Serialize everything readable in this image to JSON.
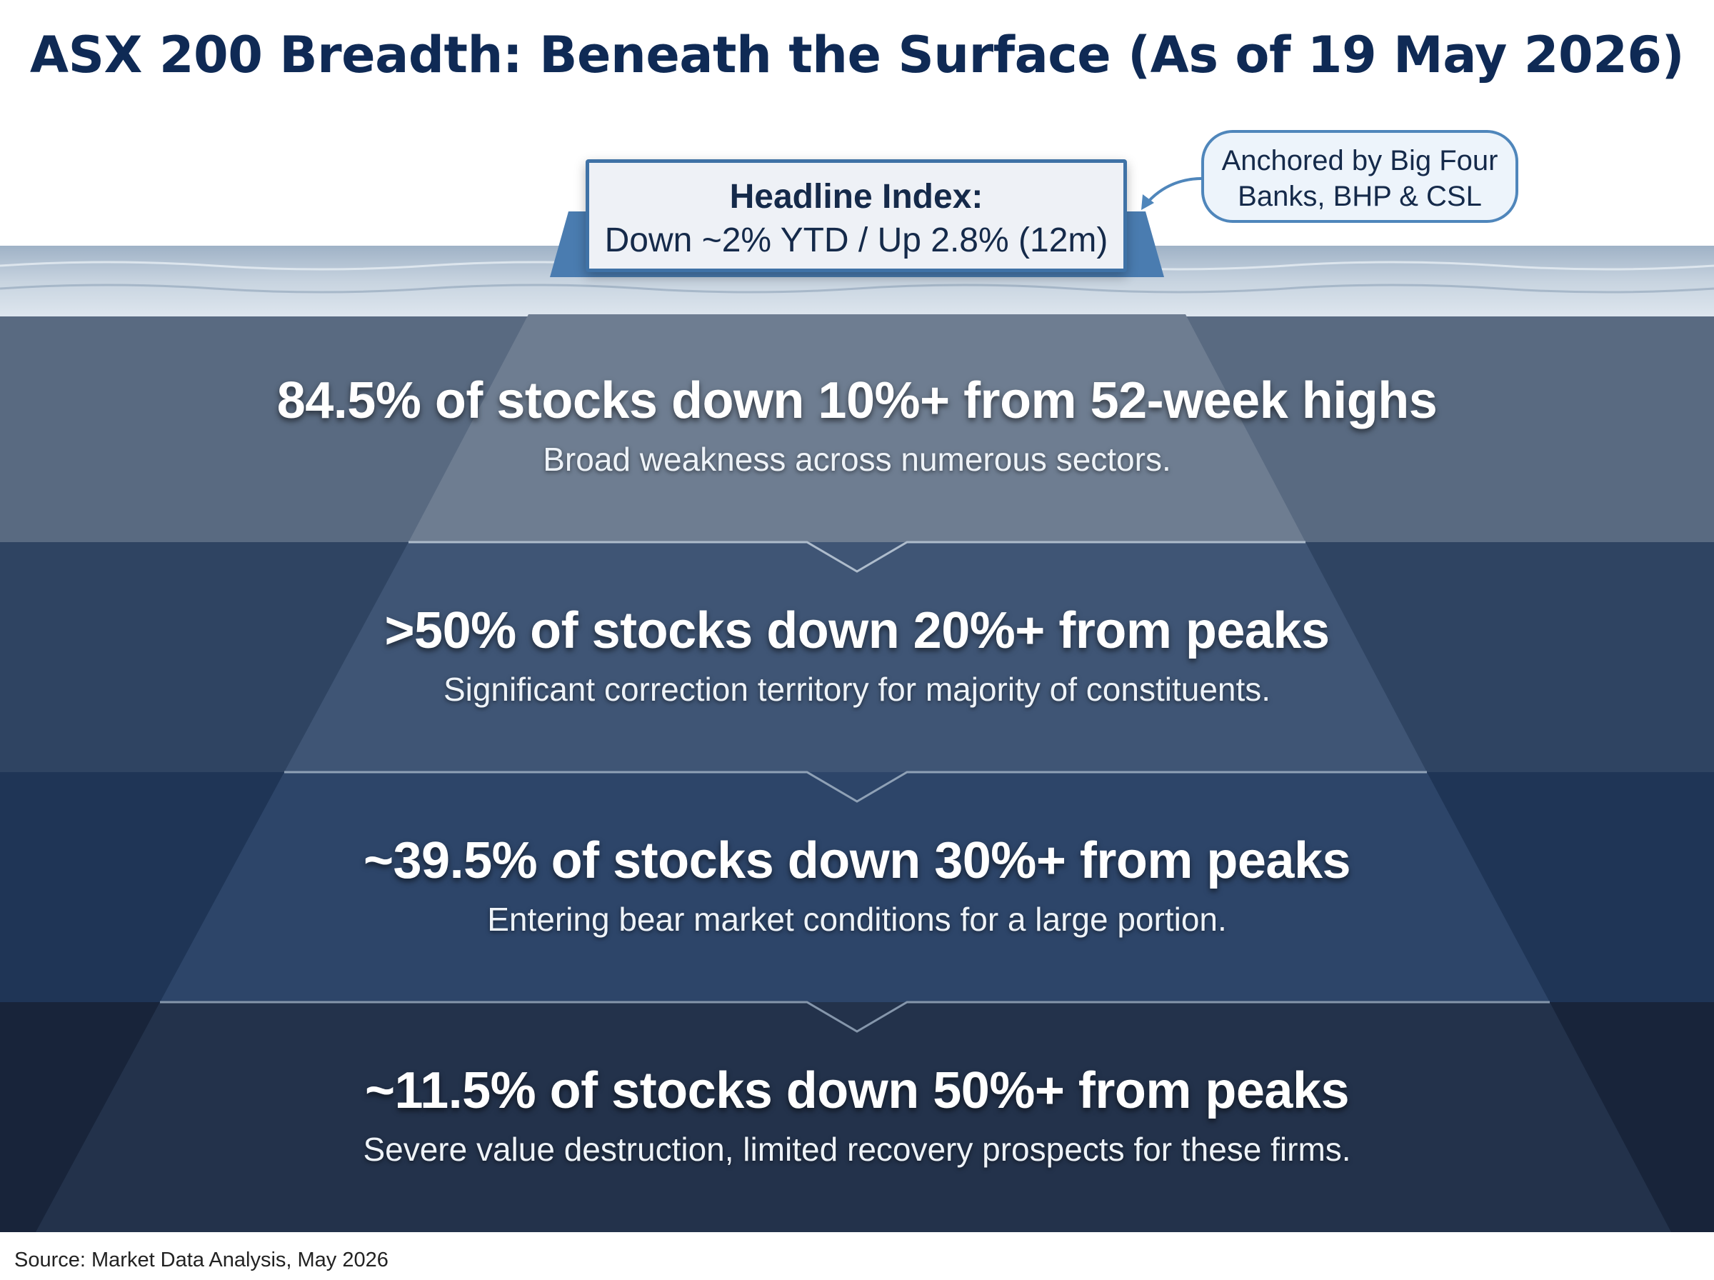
{
  "title": "ASX 200 Breadth: Beneath the Surface (As of 19 May 2026)",
  "headline": {
    "label": "Headline Index:",
    "value": "Down ~2% YTD / Up 2.8% (12m)"
  },
  "callout": {
    "line1": "Anchored by Big Four",
    "line2": "Banks, BHP & CSL"
  },
  "layers": [
    {
      "stat": "84.5% of stocks down 10%+ from 52-week highs",
      "description": "Broad weakness across numerous sectors."
    },
    {
      "stat": ">50% of stocks down 20%+ from peaks",
      "description": "Significant correction territory for majority of constituents."
    },
    {
      "stat": "~39.5% of stocks down 30%+ from peaks",
      "description": "Entering bear market conditions for a large portion."
    },
    {
      "stat": "~11.5% of stocks down 50%+ from peaks",
      "description": "Severe value destruction, limited recovery prospects for these firms."
    }
  ],
  "source": "Source: Market Data Analysis, May 2026",
  "colors": {
    "title": "#0f2a55",
    "box_border": "#3f72a6",
    "callout_border": "#4f86bb",
    "text_dark": "#152a4a",
    "layer_bands": [
      "#596a81",
      "#2f4462",
      "#1f3556",
      "#18243a"
    ],
    "iceberg_shades": [
      "#6e7d91",
      "#3f5575",
      "#2d4569",
      "#23324b"
    ]
  }
}
